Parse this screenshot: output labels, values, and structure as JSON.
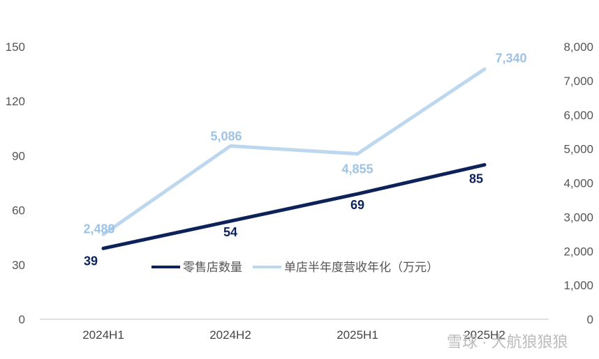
{
  "chart_data": {
    "type": "line",
    "categories": [
      "2024H1",
      "2024H2",
      "2025H1",
      "2025H2"
    ],
    "series": [
      {
        "name": "零售店数量",
        "axis": "left",
        "color": "#0d2259",
        "label_color": "#0d2259",
        "values": [
          39,
          54,
          69,
          85
        ],
        "labels": [
          "39",
          "54",
          "69",
          "85"
        ]
      },
      {
        "name": "单店半年度营收年化（万元）",
        "axis": "right",
        "color": "#bdd7ee",
        "label_color": "#9dc3e6",
        "values": [
          2489,
          5086,
          4855,
          7340
        ],
        "labels": [
          "2,489",
          "5,086",
          "4,855",
          "7,340"
        ]
      }
    ],
    "y_left": {
      "range": [
        0,
        150
      ],
      "ticks": [
        "0",
        "30",
        "60",
        "90",
        "120",
        "150"
      ]
    },
    "y_right": {
      "range": [
        0,
        8000
      ],
      "ticks": [
        "0",
        "1,000",
        "2,000",
        "3,000",
        "4,000",
        "5,000",
        "6,000",
        "7,000",
        "8,000"
      ]
    },
    "grid": false,
    "legend": "center"
  },
  "watermark": "雪球 · 大航狼狼狼"
}
